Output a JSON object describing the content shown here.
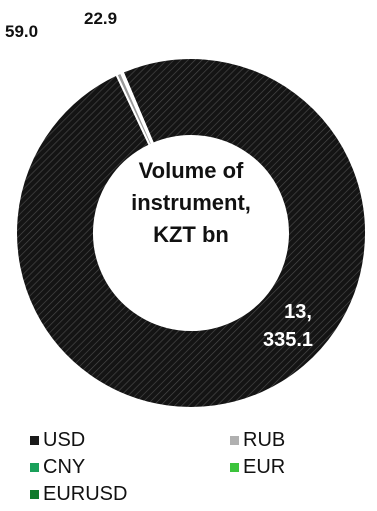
{
  "chart_data": {
    "type": "pie",
    "variant": "donut",
    "center_label": [
      "Volume of",
      "instrument,",
      "KZT bn"
    ],
    "slices": [
      {
        "name": "USD",
        "value": 13335.1,
        "color": "#1a1a1a",
        "label": [
          "13,",
          "335.1"
        ]
      },
      {
        "name": "RUB",
        "value": 59.0,
        "color": "#9a9a9a",
        "label": [
          "59.0"
        ]
      },
      {
        "name": "CNY",
        "value": 22.9,
        "color": "#1aa05a",
        "label": [
          "22.9"
        ]
      },
      {
        "name": "EUR",
        "value": 0,
        "color": "#3cc43c",
        "label": []
      },
      {
        "name": "EURUSD",
        "value": 0,
        "color": "#0f7a2a",
        "label": []
      }
    ],
    "legend": [
      {
        "label": "USD",
        "color": "#1a1a1a"
      },
      {
        "label": "RUB",
        "color": "#b0b0b0"
      },
      {
        "label": "CNY",
        "color": "#1aa05a"
      },
      {
        "label": "EUR",
        "color": "#3cc43c"
      },
      {
        "label": "EURUSD",
        "color": "#0f7a2a"
      }
    ],
    "legend_position": "bottom"
  }
}
